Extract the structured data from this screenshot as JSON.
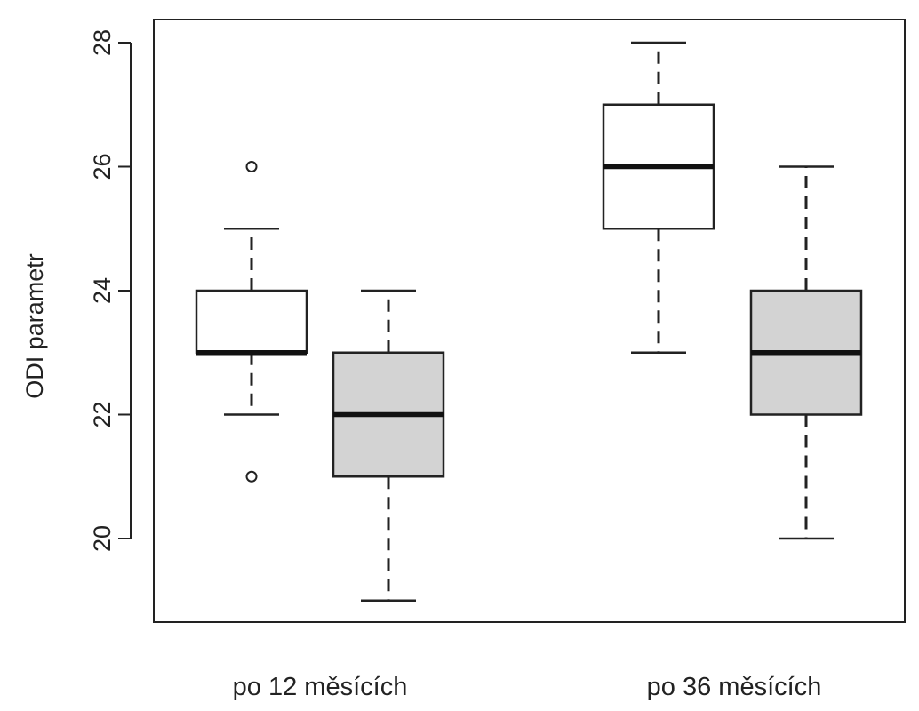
{
  "chart_data": {
    "type": "boxplot",
    "title": "",
    "xlabel": "",
    "ylabel": "ODI parametr",
    "ylim": [
      18.6,
      28.3
    ],
    "yticks": [
      20,
      22,
      24,
      26,
      28
    ],
    "grid": false,
    "legend": "none",
    "categories": [
      "po 12 měsících",
      "po 36 měsících"
    ],
    "series": [
      {
        "fill": "#ffffff",
        "boxes": [
          {
            "category": "po 12 měsících",
            "min": 22,
            "q1": 23,
            "median": 23,
            "q3": 24,
            "max": 25,
            "outliers": [
              26,
              21
            ]
          },
          {
            "category": "po 36 měsících",
            "min": 23,
            "q1": 25,
            "median": 26,
            "q3": 27,
            "max": 28,
            "outliers": []
          }
        ]
      },
      {
        "fill": "#d3d3d3",
        "boxes": [
          {
            "category": "po 12 měsících",
            "min": 19,
            "q1": 21,
            "median": 22,
            "q3": 23,
            "max": 24,
            "outliers": []
          },
          {
            "category": "po 36 měsících",
            "min": 20,
            "q1": 22,
            "median": 23,
            "q3": 24,
            "max": 26,
            "outliers": []
          }
        ]
      }
    ]
  }
}
